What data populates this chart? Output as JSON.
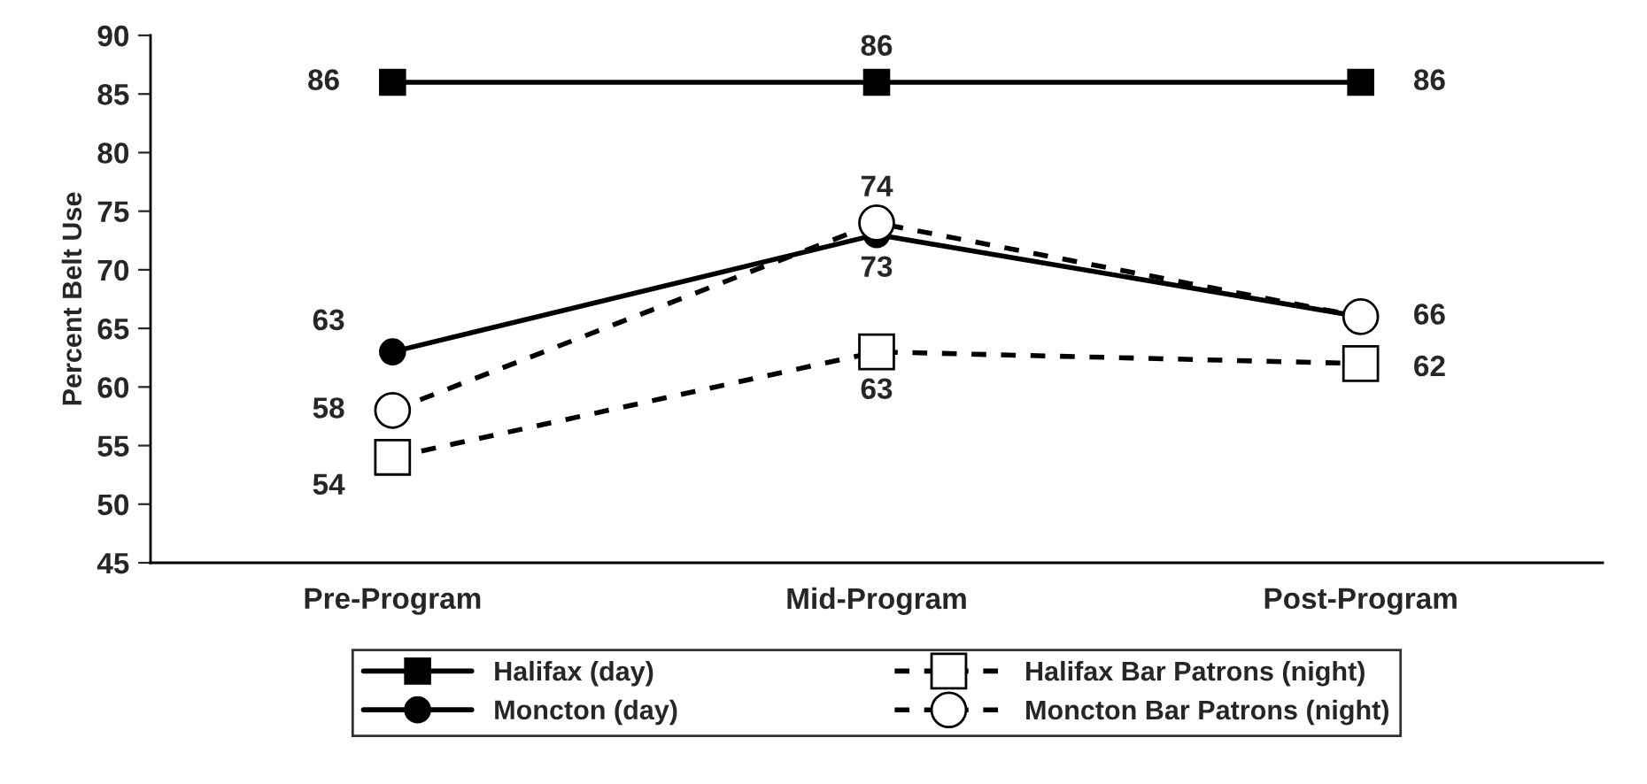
{
  "chart_data": {
    "type": "line",
    "ylabel": "Percent Belt Use",
    "categories": [
      "Pre-Program",
      "Mid-Program",
      "Post-Program"
    ],
    "series": [
      {
        "name": "Halifax (day)",
        "color": "#000000",
        "values": [
          86,
          86,
          86
        ],
        "marker": "square",
        "line_style": "solid",
        "value_labels": [
          "86",
          "86",
          "86"
        ]
      },
      {
        "name": "Moncton (day)",
        "color": "#000000",
        "values": [
          63,
          73,
          66
        ],
        "marker": "circle",
        "line_style": "solid",
        "value_labels": [
          "63",
          "73",
          "66"
        ]
      },
      {
        "name": "Halifax Bar Patrons (night)",
        "color": "#000000",
        "values": [
          54,
          63,
          62
        ],
        "marker": "square",
        "line_style": "dashed",
        "value_labels": [
          "54",
          "63",
          "62"
        ]
      },
      {
        "name": "Moncton Bar Patrons (night)",
        "color": "#000000",
        "values": [
          58,
          74,
          66
        ],
        "marker": "circle",
        "line_style": "dashed",
        "value_labels": [
          "58",
          "74",
          null
        ]
      }
    ],
    "ylim": [
      45,
      90
    ],
    "yticks": [
      45,
      50,
      55,
      60,
      65,
      70,
      75,
      80,
      85,
      90
    ],
    "grid": false,
    "legend": "bottom"
  }
}
